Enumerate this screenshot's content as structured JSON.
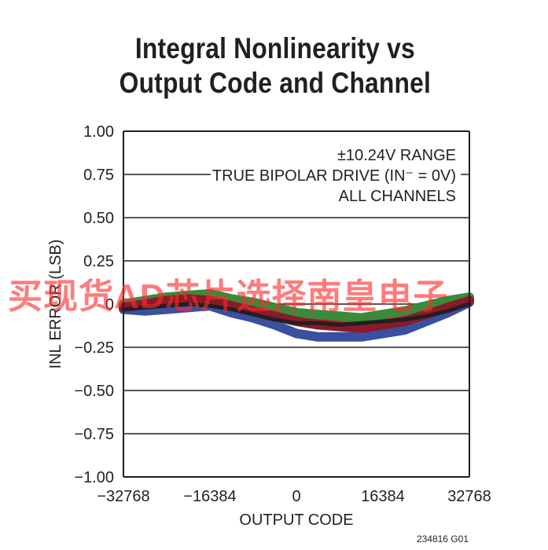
{
  "title_lines": [
    "Integral Nonlinearity vs",
    "Output Code and Channel"
  ],
  "annotation_lines": [
    "±10.24V RANGE",
    "TRUE BIPOLAR DRIVE (IN⁻ = 0V)",
    "ALL CHANNELS"
  ],
  "figure_id": "234816 G01",
  "watermark": "买现货AD芯片选择南皇电子",
  "colors": {
    "axis": "#231f20",
    "series": [
      "#3a4fa0",
      "#c8202a",
      "#3a8a3a",
      "#8a1a2a",
      "#231f20"
    ]
  },
  "chart_data": {
    "type": "line",
    "title": "Integral Nonlinearity vs Output Code and Channel",
    "xlabel": "OUTPUT CODE",
    "ylabel": "INL ERROR (LSB)",
    "xlim": [
      -32768,
      32768
    ],
    "ylim": [
      -1.0,
      1.0
    ],
    "x_ticks": [
      -32768,
      -16384,
      0,
      16384,
      32768
    ],
    "x_tick_labels": [
      "−32768",
      "−16384",
      "0",
      "16384",
      "32768"
    ],
    "y_ticks": [
      -1.0,
      -0.75,
      -0.5,
      -0.25,
      0,
      0.25,
      0.5,
      0.75,
      1.0
    ],
    "y_tick_labels": [
      "−1.00",
      "−0.75",
      "−0.50",
      "−0.25",
      "0",
      "0.25",
      "0.50",
      "0.75",
      "1.00"
    ],
    "grid": "horizontal",
    "x": [
      -32768,
      -28672,
      -24576,
      -20480,
      -16384,
      -12288,
      -8192,
      -4096,
      0,
      4096,
      8192,
      12288,
      16384,
      20480,
      24576,
      28672,
      32768
    ],
    "series": [
      {
        "values": [
          -0.03,
          -0.04,
          -0.03,
          -0.02,
          -0.01,
          -0.05,
          -0.08,
          -0.12,
          -0.17,
          -0.19,
          -0.19,
          -0.19,
          -0.17,
          -0.15,
          -0.1,
          -0.05,
          0.01
        ]
      },
      {
        "values": [
          -0.01,
          0.01,
          0.02,
          0.03,
          0.04,
          0.01,
          -0.02,
          -0.05,
          -0.08,
          -0.1,
          -0.11,
          -0.12,
          -0.1,
          -0.08,
          -0.04,
          0.0,
          0.03
        ]
      },
      {
        "values": [
          0.0,
          0.02,
          0.04,
          0.05,
          0.06,
          0.03,
          0.01,
          -0.02,
          -0.05,
          -0.06,
          -0.07,
          -0.08,
          -0.06,
          -0.04,
          -0.01,
          0.02,
          0.04
        ]
      },
      {
        "values": [
          -0.02,
          0.0,
          0.02,
          0.03,
          0.02,
          -0.01,
          -0.04,
          -0.07,
          -0.1,
          -0.12,
          -0.13,
          -0.14,
          -0.12,
          -0.1,
          -0.06,
          -0.02,
          0.02
        ]
      },
      {
        "values": [
          -0.03,
          -0.02,
          -0.01,
          0.0,
          -0.01,
          -0.03,
          -0.06,
          -0.09,
          -0.11,
          -0.11,
          -0.12,
          -0.11,
          -0.1,
          -0.09,
          -0.07,
          -0.04,
          0.0
        ]
      }
    ]
  }
}
